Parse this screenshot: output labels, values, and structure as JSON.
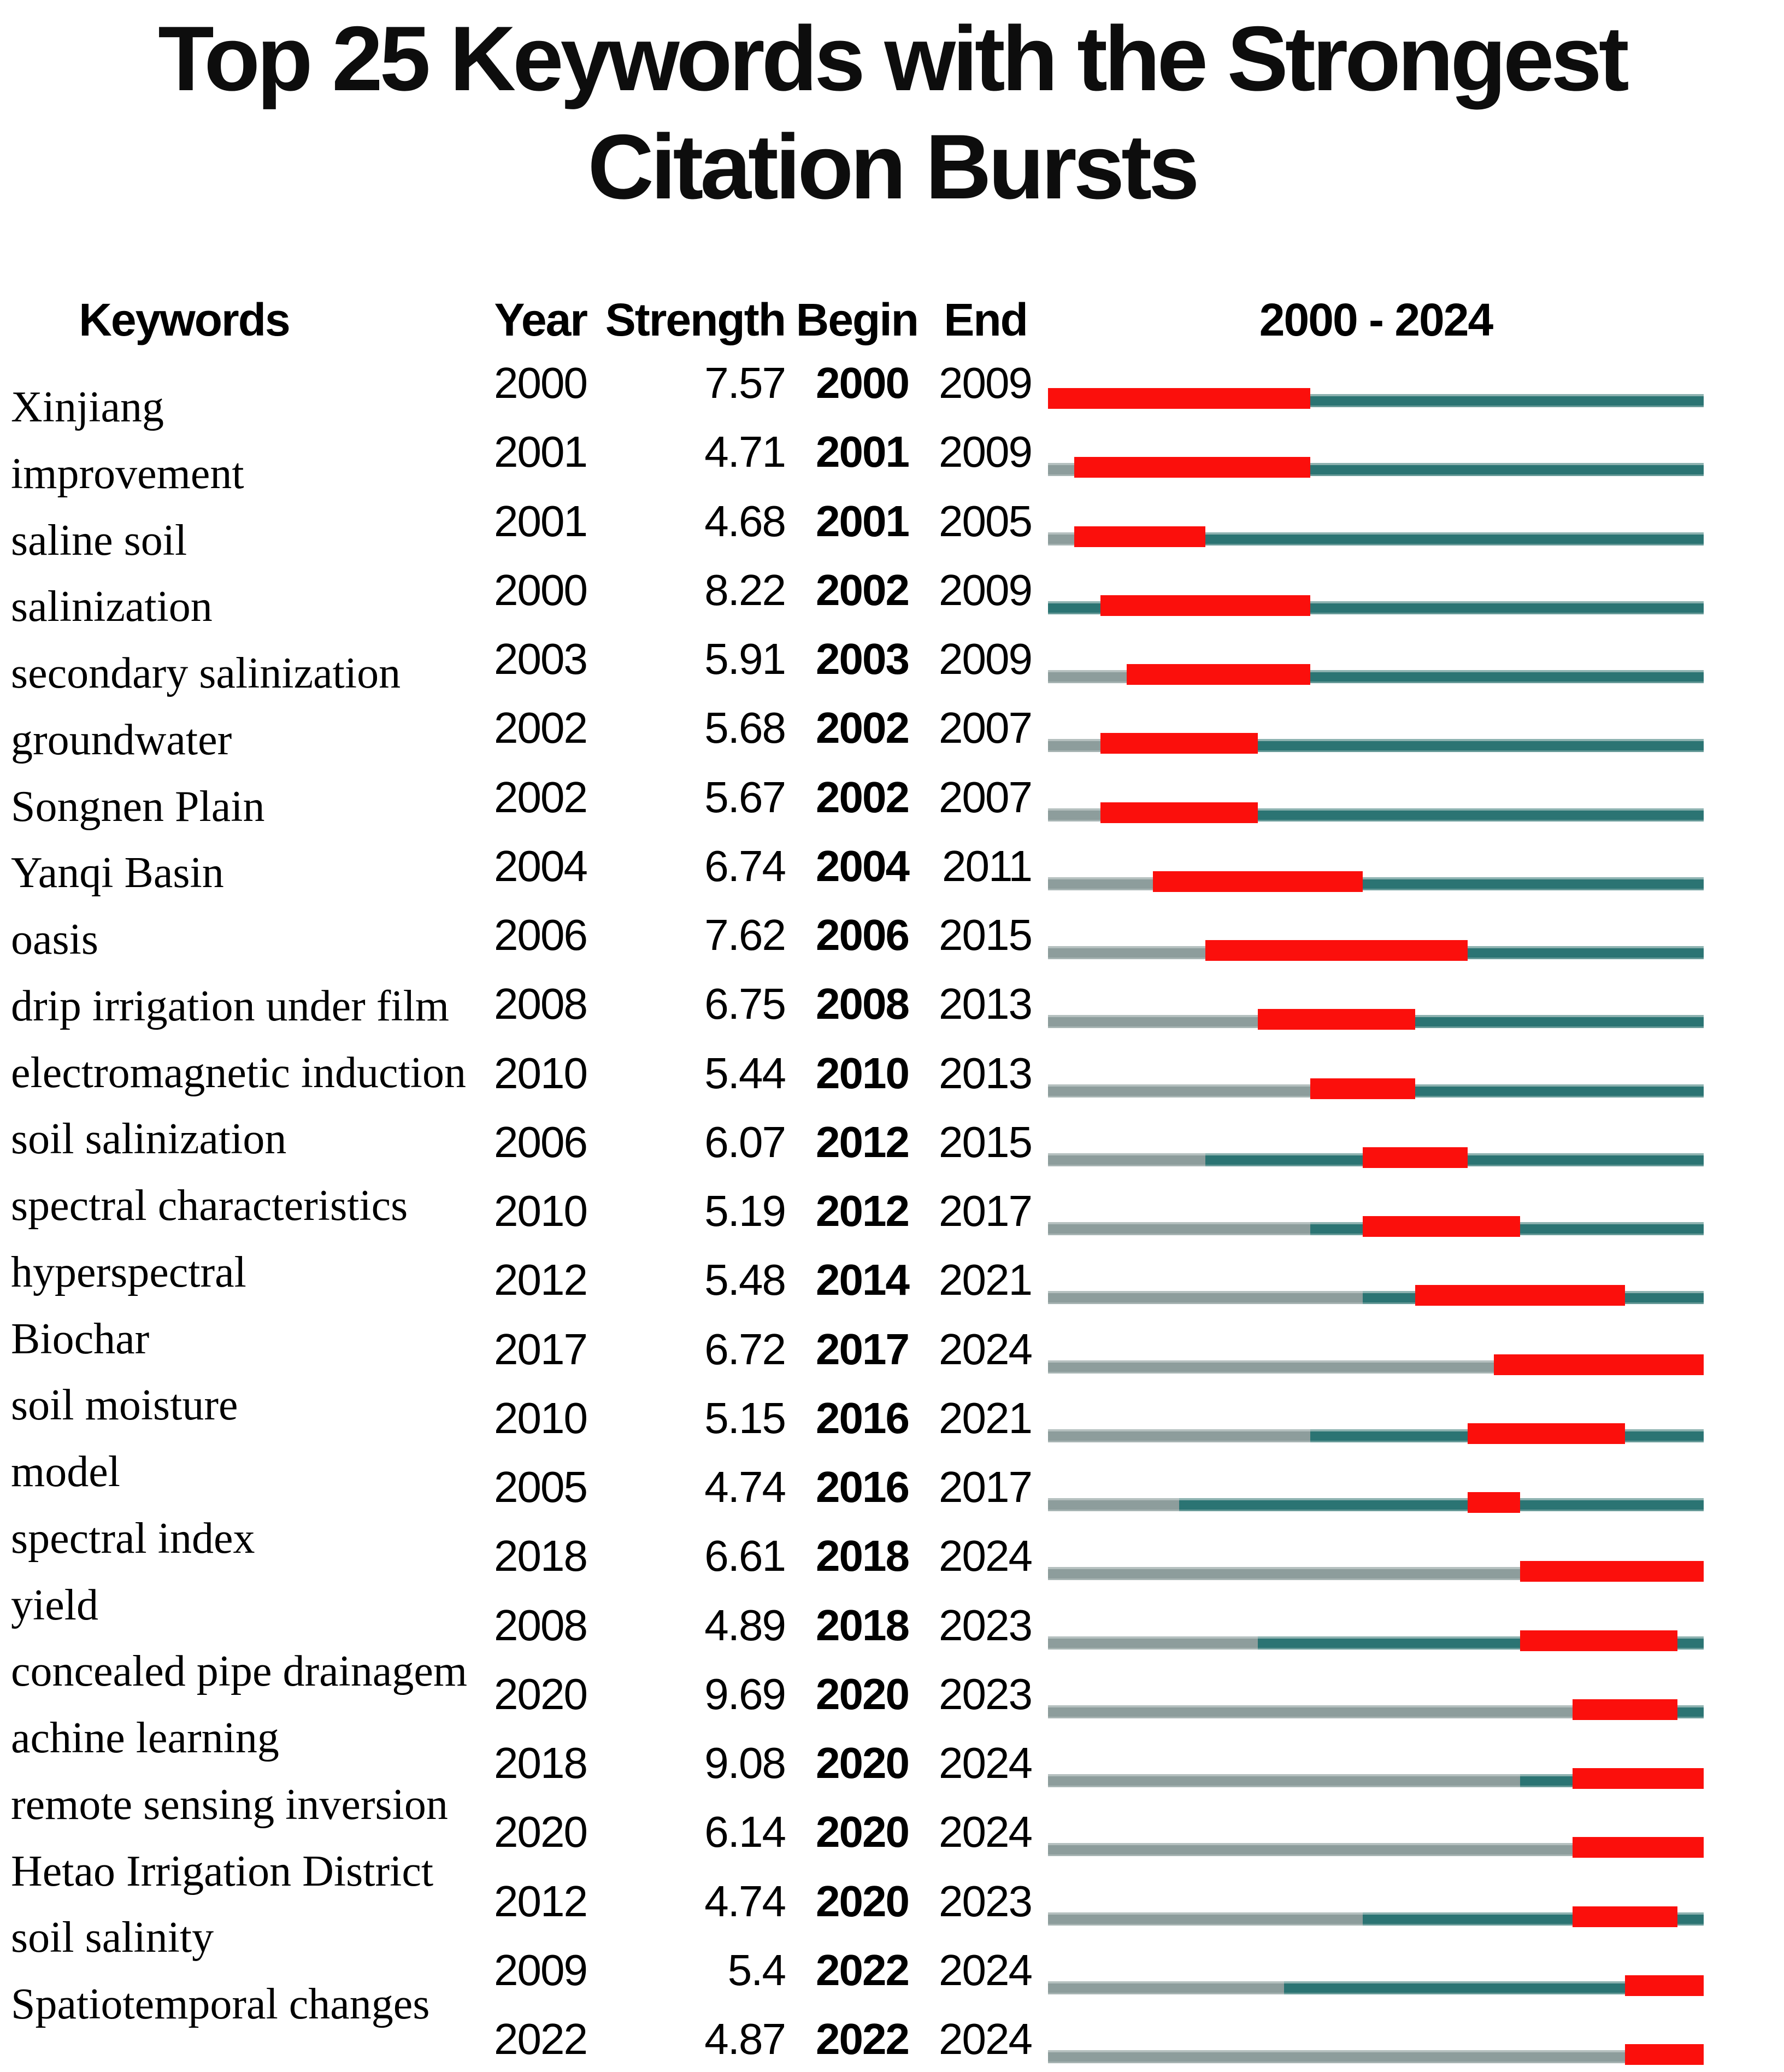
{
  "title": {
    "line1": "Top 25 Keywords with the Strongest",
    "line2": "Citation Bursts"
  },
  "header": {
    "keywords": "Keywords",
    "year": "Year",
    "strength": "Strength",
    "begin": "Begin",
    "end": "End",
    "range": "2000 - 2024"
  },
  "colors": {
    "burst_red": "#fb0f0c",
    "active_teal": "#2b7473",
    "inactive_gray": "#8d9d9c"
  },
  "chart_data": {
    "type": "table",
    "title": "Top 25 Keywords with the Strongest Citation Bursts",
    "columns": [
      "Keywords",
      "Year",
      "Strength",
      "Begin",
      "End",
      "2000 - 2024"
    ],
    "timeline_start": 2000,
    "timeline_end": 2024,
    "rows": [
      {
        "keyword": "Xinjiang",
        "year": 2000,
        "strength": "7.57",
        "begin": 2000,
        "end": 2009
      },
      {
        "keyword": "improvement",
        "year": 2001,
        "strength": "4.71",
        "begin": 2001,
        "end": 2009
      },
      {
        "keyword": "saline soil",
        "year": 2001,
        "strength": "4.68",
        "begin": 2001,
        "end": 2005
      },
      {
        "keyword": "salinization",
        "year": 2000,
        "strength": "8.22",
        "begin": 2002,
        "end": 2009
      },
      {
        "keyword": "secondary salinization",
        "year": 2003,
        "strength": "5.91",
        "begin": 2003,
        "end": 2009
      },
      {
        "keyword": "groundwater",
        "year": 2002,
        "strength": "5.68",
        "begin": 2002,
        "end": 2007
      },
      {
        "keyword": "Songnen Plain",
        "year": 2002,
        "strength": "5.67",
        "begin": 2002,
        "end": 2007
      },
      {
        "keyword": "Yanqi Basin",
        "year": 2004,
        "strength": "6.74",
        "begin": 2004,
        "end": 2011
      },
      {
        "keyword": "oasis",
        "year": 2006,
        "strength": "7.62",
        "begin": 2006,
        "end": 2015
      },
      {
        "keyword": "drip irrigation under film",
        "year": 2008,
        "strength": "6.75",
        "begin": 2008,
        "end": 2013
      },
      {
        "keyword": "electromagnetic induction",
        "year": 2010,
        "strength": "5.44",
        "begin": 2010,
        "end": 2013
      },
      {
        "keyword": "soil salinization",
        "year": 2006,
        "strength": "6.07",
        "begin": 2012,
        "end": 2015
      },
      {
        "keyword": "spectral characteristics",
        "year": 2010,
        "strength": "5.19",
        "begin": 2012,
        "end": 2017
      },
      {
        "keyword": "hyperspectral",
        "year": 2012,
        "strength": "5.48",
        "begin": 2014,
        "end": 2021
      },
      {
        "keyword": "Biochar",
        "year": 2017,
        "strength": "6.72",
        "begin": 2017,
        "end": 2024
      },
      {
        "keyword": "soil moisture",
        "year": 2010,
        "strength": "5.15",
        "begin": 2016,
        "end": 2021
      },
      {
        "keyword": "model",
        "year": 2005,
        "strength": "4.74",
        "begin": 2016,
        "end": 2017
      },
      {
        "keyword": "spectral index",
        "year": 2018,
        "strength": "6.61",
        "begin": 2018,
        "end": 2024
      },
      {
        "keyword": "yield",
        "year": 2008,
        "strength": "4.89",
        "begin": 2018,
        "end": 2023
      },
      {
        "keyword": "concealed pipe drainagem",
        "year": 2020,
        "strength": "9.69",
        "begin": 2020,
        "end": 2023
      },
      {
        "keyword": "achine learning",
        "year": 2018,
        "strength": "9.08",
        "begin": 2020,
        "end": 2024
      },
      {
        "keyword": "remote sensing inversion",
        "year": 2020,
        "strength": "6.14",
        "begin": 2020,
        "end": 2024
      },
      {
        "keyword": "Hetao Irrigation District",
        "year": 2012,
        "strength": "4.74",
        "begin": 2020,
        "end": 2023
      },
      {
        "keyword": "soil salinity",
        "year": 2009,
        "strength": "5.4",
        "begin": 2022,
        "end": 2024
      },
      {
        "keyword": "Spatiotemporal changes",
        "year": 2022,
        "strength": "4.87",
        "begin": 2022,
        "end": 2024
      }
    ]
  }
}
